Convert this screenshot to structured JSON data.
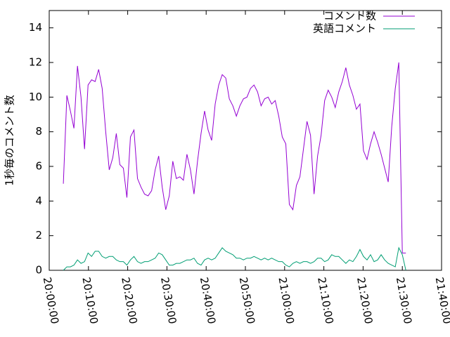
{
  "chart_data": {
    "type": "line",
    "y_label": "1秒毎のコメント数",
    "x": [
      "20:03:36",
      "20:04:30",
      "20:05:24",
      "20:06:18",
      "20:07:12",
      "20:08:06",
      "20:09:00",
      "20:09:54",
      "20:10:48",
      "20:11:42",
      "20:12:36",
      "20:13:30",
      "20:14:24",
      "20:15:18",
      "20:16:12",
      "20:17:06",
      "20:18:00",
      "20:18:54",
      "20:19:48",
      "20:20:42",
      "20:21:36",
      "20:22:30",
      "20:23:24",
      "20:24:18",
      "20:25:12",
      "20:26:06",
      "20:27:00",
      "20:27:54",
      "20:28:48",
      "20:29:42",
      "20:30:36",
      "20:31:30",
      "20:32:24",
      "20:33:18",
      "20:34:12",
      "20:35:06",
      "20:36:00",
      "20:36:54",
      "20:37:48",
      "20:38:42",
      "20:39:36",
      "20:40:30",
      "20:41:24",
      "20:42:18",
      "20:43:12",
      "20:44:06",
      "20:45:00",
      "20:45:54",
      "20:46:48",
      "20:47:42",
      "20:48:36",
      "20:49:30",
      "20:50:24",
      "20:51:18",
      "20:52:12",
      "20:53:06",
      "20:54:00",
      "20:54:54",
      "20:55:48",
      "20:56:42",
      "20:57:36",
      "20:58:30",
      "20:59:24",
      "21:00:18",
      "21:01:12",
      "21:02:06",
      "21:03:00",
      "21:03:54",
      "21:04:48",
      "21:05:42",
      "21:06:36",
      "21:07:30",
      "21:08:24",
      "21:09:18",
      "21:10:12",
      "21:11:06",
      "21:12:00",
      "21:12:54",
      "21:13:48",
      "21:14:42",
      "21:15:36",
      "21:16:30",
      "21:17:24",
      "21:18:18",
      "21:19:12",
      "21:20:06",
      "21:21:00",
      "21:21:54",
      "21:22:48",
      "21:23:42",
      "21:24:36",
      "21:25:30",
      "21:26:24",
      "21:27:18",
      "21:28:12",
      "21:29:06",
      "21:30:00",
      "21:30:54"
    ],
    "series": [
      {
        "name": "コメント数",
        "color": "#9400d3",
        "values": [
          5.0,
          10.1,
          9.2,
          8.2,
          11.8,
          10.0,
          7.0,
          10.7,
          11.0,
          10.9,
          11.6,
          10.5,
          8.0,
          5.8,
          6.5,
          7.9,
          6.1,
          5.9,
          4.2,
          7.7,
          8.1,
          5.3,
          4.8,
          4.4,
          4.3,
          4.6,
          5.8,
          6.6,
          4.8,
          3.5,
          4.3,
          6.3,
          5.3,
          5.4,
          5.2,
          6.7,
          5.8,
          4.4,
          6.3,
          7.9,
          9.2,
          8.1,
          7.5,
          9.6,
          10.7,
          11.3,
          11.1,
          9.9,
          9.5,
          8.9,
          9.5,
          9.9,
          10.0,
          10.5,
          10.7,
          10.3,
          9.5,
          9.9,
          10.0,
          9.6,
          9.8,
          8.9,
          7.7,
          7.3,
          3.8,
          3.5,
          4.9,
          5.4,
          7.0,
          8.6,
          7.8,
          4.4,
          6.6,
          7.8,
          9.8,
          10.4,
          10.0,
          9.4,
          10.3,
          10.9,
          11.7,
          10.7,
          10.1,
          9.3,
          9.6,
          6.9,
          6.4,
          7.3,
          8.0,
          7.4,
          6.7,
          5.9,
          5.1,
          8.3,
          10.5,
          12.0,
          1.0,
          1.0
        ]
      },
      {
        "name": "英語コメント",
        "color": "#009e73",
        "values": [
          0.0,
          0.2,
          0.2,
          0.3,
          0.6,
          0.4,
          0.5,
          1.0,
          0.8,
          1.1,
          1.1,
          0.8,
          0.7,
          0.8,
          0.8,
          0.6,
          0.5,
          0.5,
          0.3,
          0.6,
          0.8,
          0.5,
          0.4,
          0.5,
          0.5,
          0.6,
          0.7,
          1.0,
          0.9,
          0.6,
          0.3,
          0.3,
          0.4,
          0.4,
          0.5,
          0.6,
          0.6,
          0.7,
          0.4,
          0.3,
          0.6,
          0.7,
          0.6,
          0.7,
          1.0,
          1.3,
          1.1,
          1.0,
          0.9,
          0.7,
          0.7,
          0.6,
          0.7,
          0.7,
          0.8,
          0.7,
          0.6,
          0.7,
          0.6,
          0.7,
          0.6,
          0.5,
          0.5,
          0.3,
          0.2,
          0.4,
          0.5,
          0.4,
          0.5,
          0.5,
          0.4,
          0.5,
          0.7,
          0.7,
          0.5,
          0.6,
          0.9,
          0.8,
          0.8,
          0.6,
          0.4,
          0.6,
          0.5,
          0.8,
          1.2,
          0.8,
          0.6,
          0.9,
          0.5,
          0.6,
          0.9,
          0.6,
          0.4,
          0.3,
          0.2,
          1.3,
          0.9,
          0.0
        ]
      }
    ],
    "xlim": [
      "20:00:00",
      "21:40:00"
    ],
    "xticks": [
      "20:00:00",
      "20:10:00",
      "20:20:00",
      "20:30:00",
      "20:40:00",
      "20:50:00",
      "21:00:00",
      "21:10:00",
      "21:20:00",
      "21:30:00",
      "21:40:00"
    ],
    "ylim": [
      0,
      15
    ],
    "yticks": [
      0,
      2,
      4,
      6,
      8,
      10,
      12,
      14
    ],
    "legend": "top-right"
  }
}
